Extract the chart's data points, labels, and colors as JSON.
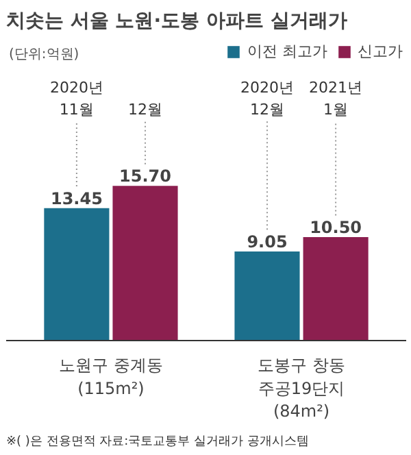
{
  "chart_data": {
    "type": "bar",
    "title": "치솟는 서울 노원·도봉 아파트 실거래가",
    "subtitle": "(단위:억원)",
    "categories": [
      "노원구 중계동\n(115m²)",
      "도봉구 창동\n주공19단지\n(84m²)"
    ],
    "series": [
      {
        "name": "이전 최고가",
        "color": "#1c6f8c",
        "values": [
          13.45,
          9.05
        ],
        "value_labels": [
          "13.45",
          "9.05"
        ]
      },
      {
        "name": "신고가",
        "color": "#8c1f4f",
        "values": [
          15.7,
          10.5
        ],
        "value_labels": [
          "15.70",
          "10.50"
        ]
      }
    ],
    "annotations": [
      "2020년\n11월",
      "12월",
      "2020년\n12월",
      "2021년\n1월",
      "※( )은 전용면적   자료:국토교통부 실거래가 공개시스템"
    ],
    "legend": "top right",
    "grid": false
  }
}
